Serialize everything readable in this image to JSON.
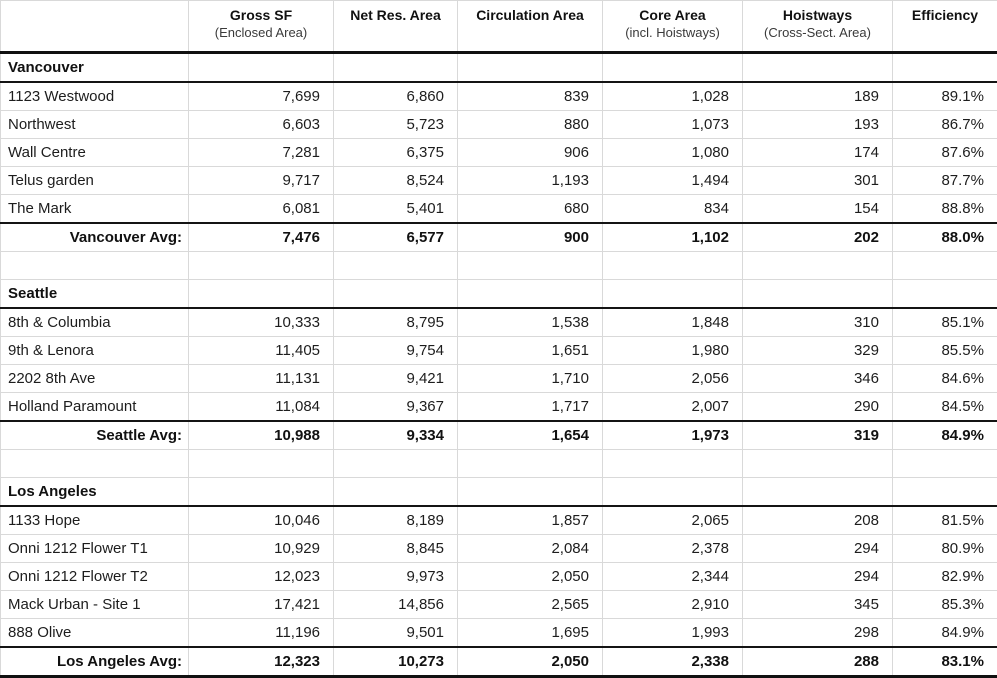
{
  "chart_data": {
    "type": "table",
    "columns": [
      {
        "label": "",
        "sublabel": ""
      },
      {
        "label": "Gross SF",
        "sublabel": "(Enclosed Area)"
      },
      {
        "label": "Net Res. Area",
        "sublabel": ""
      },
      {
        "label": "Circulation Area",
        "sublabel": ""
      },
      {
        "label": "Core Area",
        "sublabel": "(incl. Hoistways)"
      },
      {
        "label": "Hoistways",
        "sublabel": "(Cross-Sect. Area)"
      },
      {
        "label": "Efficiency",
        "sublabel": ""
      }
    ],
    "sections": [
      {
        "city": "Vancouver",
        "rows": [
          {
            "name": "1123 Westwood",
            "values": [
              "7,699",
              "6,860",
              "839",
              "1,028",
              "189",
              "89.1%"
            ]
          },
          {
            "name": "Northwest",
            "values": [
              "6,603",
              "5,723",
              "880",
              "1,073",
              "193",
              "86.7%"
            ]
          },
          {
            "name": "Wall Centre",
            "values": [
              "7,281",
              "6,375",
              "906",
              "1,080",
              "174",
              "87.6%"
            ]
          },
          {
            "name": "Telus garden",
            "values": [
              "9,717",
              "8,524",
              "1,193",
              "1,494",
              "301",
              "87.7%"
            ]
          },
          {
            "name": "The Mark",
            "values": [
              "6,081",
              "5,401",
              "680",
              "834",
              "154",
              "88.8%"
            ]
          }
        ],
        "avg": {
          "label": "Vancouver Avg:",
          "values": [
            "7,476",
            "6,577",
            "900",
            "1,102",
            "202",
            "88.0%"
          ]
        }
      },
      {
        "city": "Seattle",
        "rows": [
          {
            "name": "8th & Columbia",
            "values": [
              "10,333",
              "8,795",
              "1,538",
              "1,848",
              "310",
              "85.1%"
            ]
          },
          {
            "name": "9th & Lenora",
            "values": [
              "11,405",
              "9,754",
              "1,651",
              "1,980",
              "329",
              "85.5%"
            ]
          },
          {
            "name": "2202 8th Ave",
            "values": [
              "11,131",
              "9,421",
              "1,710",
              "2,056",
              "346",
              "84.6%"
            ]
          },
          {
            "name": "Holland Paramount",
            "values": [
              "11,084",
              "9,367",
              "1,717",
              "2,007",
              "290",
              "84.5%"
            ]
          }
        ],
        "avg": {
          "label": "Seattle Avg:",
          "values": [
            "10,988",
            "9,334",
            "1,654",
            "1,973",
            "319",
            "84.9%"
          ]
        }
      },
      {
        "city": "Los Angeles",
        "rows": [
          {
            "name": "1133 Hope",
            "values": [
              "10,046",
              "8,189",
              "1,857",
              "2,065",
              "208",
              "81.5%"
            ]
          },
          {
            "name": "Onni 1212 Flower T1",
            "values": [
              "10,929",
              "8,845",
              "2,084",
              "2,378",
              "294",
              "80.9%"
            ]
          },
          {
            "name": "Onni 1212 Flower T2",
            "values": [
              "12,023",
              "9,973",
              "2,050",
              "2,344",
              "294",
              "82.9%"
            ]
          },
          {
            "name": "Mack Urban - Site 1",
            "values": [
              "17,421",
              "14,856",
              "2,565",
              "2,910",
              "345",
              "85.3%"
            ]
          },
          {
            "name": "888 Olive",
            "values": [
              "11,196",
              "9,501",
              "1,695",
              "1,993",
              "298",
              "84.9%"
            ]
          }
        ],
        "avg": {
          "label": "Los Angeles Avg:",
          "values": [
            "12,323",
            "10,273",
            "2,050",
            "2,338",
            "288",
            "83.1%"
          ]
        }
      }
    ]
  },
  "layout_colors": {
    "gridline": "#d9d9d9",
    "heavy_border": "#101010",
    "text": "#1d1d1d",
    "sub_header_text": "#3a3a3a"
  }
}
